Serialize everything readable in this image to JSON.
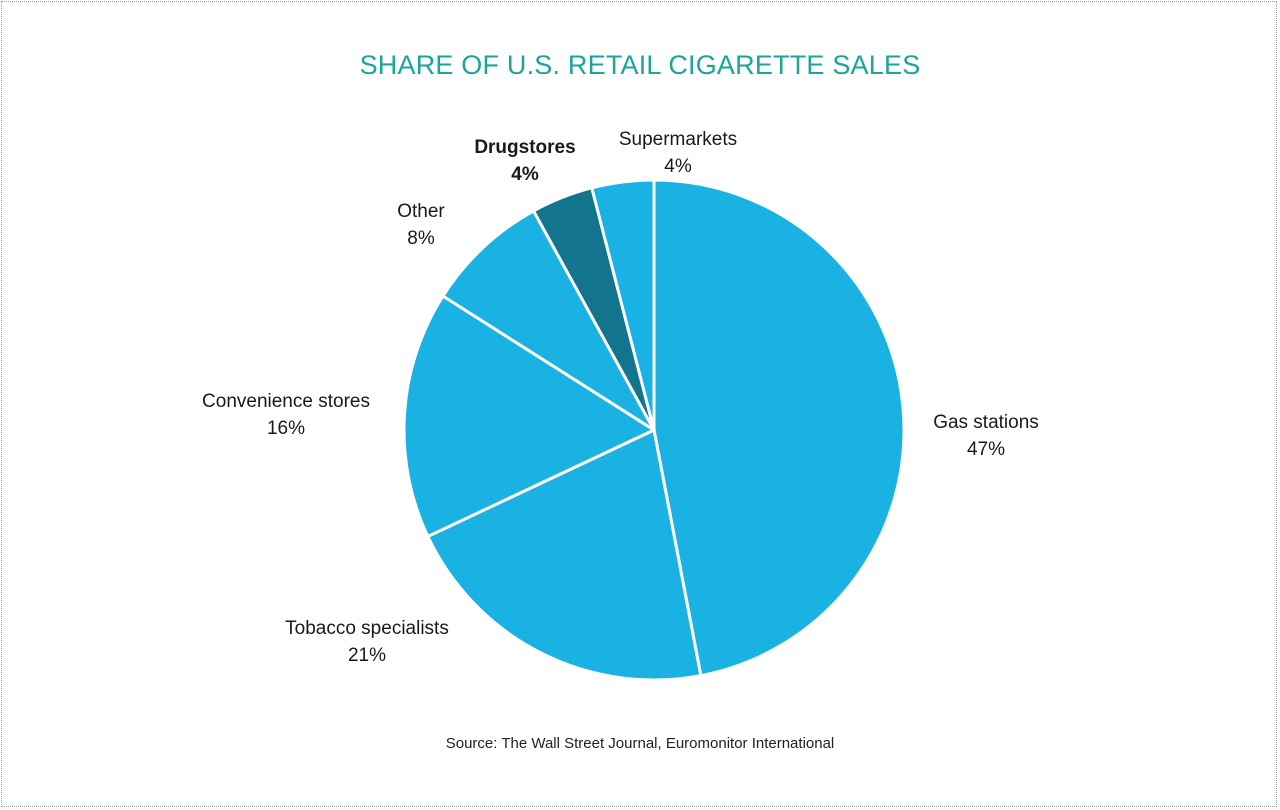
{
  "chart_data": {
    "type": "pie",
    "title": "SHARE OF U.S. RETAIL CIGARETTE SALES",
    "source": "Source: The Wall Street Journal, Euromonitor International",
    "title_color": "#1aa59a",
    "slices": [
      {
        "label": "Gas stations",
        "value": 47,
        "value_label": "47%",
        "color": "#1ab2e2",
        "bold": false
      },
      {
        "label": "Tobacco specialists",
        "value": 21,
        "value_label": "21%",
        "color": "#1ab2e2",
        "bold": false
      },
      {
        "label": "Convenience stores",
        "value": 16,
        "value_label": "16%",
        "color": "#1ab2e2",
        "bold": false
      },
      {
        "label": "Other",
        "value": 8,
        "value_label": "8%",
        "color": "#1ab2e2",
        "bold": false
      },
      {
        "label": "Drugstores",
        "value": 4,
        "value_label": "4%",
        "color": "#13758d",
        "bold": true
      },
      {
        "label": "Supermarkets",
        "value": 4,
        "value_label": "4%",
        "color": "#1ab2e2",
        "bold": false
      }
    ]
  }
}
